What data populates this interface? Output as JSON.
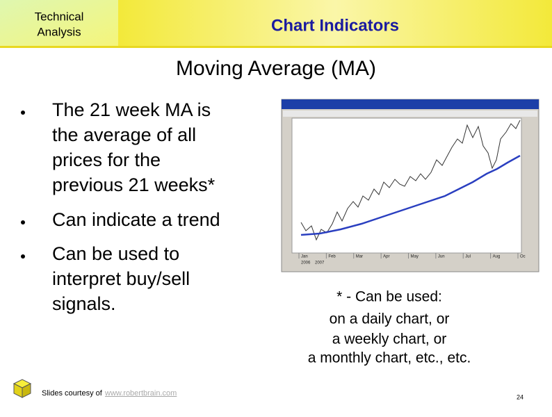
{
  "header": {
    "section": [
      "Technical",
      "Analysis"
    ],
    "title": "Chart Indicators"
  },
  "slide_title": "Moving Average (MA)",
  "bullets": [
    [
      "The 21 week MA is",
      "the average of all",
      "prices for the",
      "previous 21 weeks*"
    ],
    [
      "Can indicate a trend"
    ],
    [
      "Can be used to",
      "interpret buy/sell",
      "signals."
    ]
  ],
  "chart_image": {
    "months": [
      "Jan",
      "Feb",
      "Mar",
      "Apr",
      "May",
      "Jun",
      "Jul",
      "Aug",
      "Oc"
    ],
    "years": [
      "2006",
      "2007"
    ]
  },
  "footnote": [
    "* - Can be used:",
    "on a daily chart, or",
    "a weekly chart, or",
    "a monthly chart, etc., etc."
  ],
  "footer": {
    "credit": "Slides courtesy of",
    "link": "www.robertbrain.com",
    "page": "24"
  }
}
